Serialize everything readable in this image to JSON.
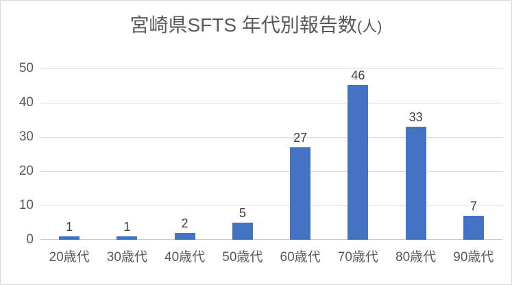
{
  "chart": {
    "title_main": "宮崎県SFTS 年代別報告数",
    "title_suffix": "(人)"
  },
  "chart_data": {
    "type": "bar",
    "title": "宮崎県SFTS 年代別報告数(人)",
    "categories": [
      "20歳代",
      "30歳代",
      "40歳代",
      "50歳代",
      "60歳代",
      "70歳代",
      "80歳代",
      "90歳代"
    ],
    "values": [
      1,
      1,
      2,
      5,
      27,
      46,
      33,
      7
    ],
    "xlabel": "",
    "ylabel": "",
    "ylim": [
      0,
      50
    ],
    "yticks": [
      0,
      10,
      20,
      30,
      40,
      50
    ],
    "grid": true,
    "legend": "none",
    "data_labels": true
  },
  "colors": {
    "bar": "#4472C4",
    "title": "#595959",
    "axis_label": "#595959",
    "data_label": "#404040",
    "gridline": "#D9D9D9",
    "axis_line": "#C8C8C8",
    "frame_border": "#D9D9D9",
    "background": "#FFFFFF"
  }
}
